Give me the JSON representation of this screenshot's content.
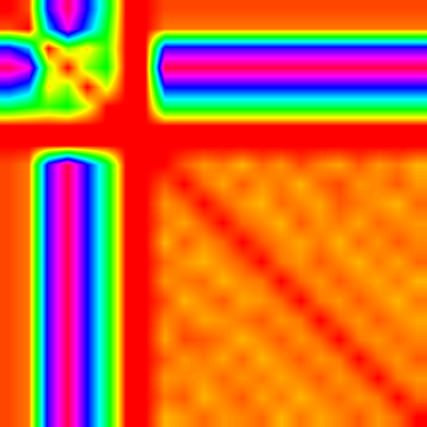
{
  "chart_data": {
    "type": "heatmap",
    "color": "hsv",
    "tick_labels": false,
    "color_range": [
      0,
      1
    ],
    "cells": [
      [
        0,
        0.05,
        0.7,
        0.95,
        0.68,
        0.4,
        0,
        0,
        0.05,
        0.05,
        0.05,
        0.05,
        0.05,
        0.05,
        0.05,
        0.05,
        0.05,
        0.05,
        0.05,
        0.05,
        0.05,
        0.05
      ],
      [
        0.05,
        0,
        0.55,
        0.85,
        0.6,
        0.35,
        0,
        0,
        0.08,
        0.08,
        0.08,
        0.08,
        0.08,
        0.08,
        0.08,
        0.08,
        0.08,
        0.08,
        0.08,
        0.08,
        0.08,
        0.08
      ],
      [
        0.7,
        0.55,
        0,
        0.25,
        0.15,
        0.3,
        0,
        0,
        0.72,
        0.72,
        0.72,
        0.72,
        0.72,
        0.72,
        0.72,
        0.72,
        0.72,
        0.72,
        0.72,
        0.72,
        0.72,
        0.72
      ],
      [
        0.95,
        0.85,
        0.25,
        0,
        0.25,
        0.35,
        0,
        0,
        0.97,
        0.97,
        0.97,
        0.97,
        0.97,
        0.97,
        0.97,
        0.97,
        0.97,
        0.97,
        0.97,
        0.97,
        0.97,
        0.97
      ],
      [
        0.68,
        0.6,
        0.15,
        0.25,
        0,
        0.2,
        0,
        0,
        0.68,
        0.68,
        0.68,
        0.68,
        0.68,
        0.68,
        0.68,
        0.68,
        0.68,
        0.68,
        0.68,
        0.68,
        0.68,
        0.68
      ],
      [
        0.4,
        0.35,
        0.3,
        0.35,
        0.2,
        0,
        0,
        0,
        0.4,
        0.4,
        0.4,
        0.4,
        0.4,
        0.4,
        0.4,
        0.4,
        0.4,
        0.4,
        0.4,
        0.4,
        0.4,
        0.4
      ],
      [
        0,
        0,
        0,
        0,
        0,
        0,
        0,
        0,
        0,
        0,
        0,
        0,
        0,
        0,
        0,
        0,
        0,
        0,
        0,
        0,
        0,
        0
      ],
      [
        0,
        0,
        0,
        0,
        0,
        0,
        0,
        0,
        0,
        0,
        0,
        0,
        0,
        0,
        0,
        0,
        0,
        0,
        0,
        0,
        0,
        0
      ],
      [
        0.05,
        0.08,
        0.72,
        0.97,
        0.68,
        0.4,
        0,
        0,
        0,
        0.06,
        0.1,
        0.08,
        0.12,
        0.07,
        0.1,
        0.05,
        0.09,
        0.11,
        0.06,
        0.1,
        0.08,
        0.12
      ],
      [
        0.05,
        0.08,
        0.72,
        0.97,
        0.68,
        0.4,
        0,
        0,
        0.06,
        0,
        0.07,
        0.11,
        0.06,
        0.1,
        0.08,
        0.12,
        0.07,
        0.05,
        0.1,
        0.09,
        0.06,
        0.1
      ],
      [
        0.05,
        0.08,
        0.72,
        0.97,
        0.68,
        0.4,
        0,
        0,
        0.1,
        0.07,
        0,
        0.06,
        0.1,
        0.12,
        0.07,
        0.09,
        0.11,
        0.06,
        0.08,
        0.1,
        0.12,
        0.07
      ],
      [
        0.05,
        0.08,
        0.72,
        0.97,
        0.68,
        0.4,
        0,
        0,
        0.08,
        0.11,
        0.06,
        0,
        0.07,
        0.09,
        0.12,
        0.06,
        0.1,
        0.08,
        0.11,
        0.07,
        0.09,
        0.1
      ],
      [
        0.05,
        0.08,
        0.72,
        0.97,
        0.68,
        0.4,
        0,
        0,
        0.12,
        0.06,
        0.1,
        0.07,
        0,
        0.06,
        0.09,
        0.11,
        0.08,
        0.12,
        0.07,
        0.1,
        0.06,
        0.09
      ],
      [
        0.05,
        0.08,
        0.72,
        0.97,
        0.68,
        0.4,
        0,
        0,
        0.07,
        0.1,
        0.12,
        0.09,
        0.06,
        0,
        0.08,
        0.1,
        0.06,
        0.09,
        0.12,
        0.08,
        0.11,
        0.07
      ],
      [
        0.05,
        0.08,
        0.72,
        0.97,
        0.68,
        0.4,
        0,
        0,
        0.1,
        0.08,
        0.07,
        0.12,
        0.09,
        0.08,
        0,
        0.07,
        0.1,
        0.06,
        0.09,
        0.11,
        0.08,
        0.12
      ],
      [
        0.05,
        0.08,
        0.72,
        0.97,
        0.68,
        0.4,
        0,
        0,
        0.05,
        0.12,
        0.09,
        0.06,
        0.11,
        0.1,
        0.07,
        0,
        0.08,
        0.1,
        0.06,
        0.09,
        0.12,
        0.08
      ],
      [
        0.05,
        0.08,
        0.72,
        0.97,
        0.68,
        0.4,
        0,
        0,
        0.09,
        0.07,
        0.11,
        0.1,
        0.08,
        0.06,
        0.1,
        0.08,
        0,
        0.07,
        0.1,
        0.06,
        0.09,
        0.11
      ],
      [
        0.05,
        0.08,
        0.72,
        0.97,
        0.68,
        0.4,
        0,
        0,
        0.11,
        0.05,
        0.06,
        0.08,
        0.12,
        0.09,
        0.06,
        0.1,
        0.07,
        0,
        0.08,
        0.1,
        0.07,
        0.09
      ],
      [
        0.05,
        0.08,
        0.72,
        0.97,
        0.68,
        0.4,
        0,
        0,
        0.06,
        0.1,
        0.08,
        0.11,
        0.07,
        0.12,
        0.09,
        0.06,
        0.1,
        0.08,
        0,
        0.07,
        0.1,
        0.06
      ],
      [
        0.05,
        0.08,
        0.72,
        0.97,
        0.68,
        0.4,
        0,
        0,
        0.1,
        0.09,
        0.1,
        0.07,
        0.1,
        0.08,
        0.11,
        0.09,
        0.06,
        0.1,
        0.07,
        0,
        0.08,
        0.1
      ],
      [
        0.05,
        0.08,
        0.72,
        0.97,
        0.68,
        0.4,
        0,
        0,
        0.08,
        0.06,
        0.12,
        0.09,
        0.06,
        0.11,
        0.08,
        0.12,
        0.09,
        0.07,
        0.1,
        0.08,
        0,
        0.07
      ],
      [
        0.05,
        0.08,
        0.72,
        0.97,
        0.68,
        0.4,
        0,
        0,
        0.12,
        0.1,
        0.07,
        0.1,
        0.09,
        0.07,
        0.12,
        0.08,
        0.11,
        0.09,
        0.06,
        0.1,
        0.07,
        0
      ]
    ]
  }
}
